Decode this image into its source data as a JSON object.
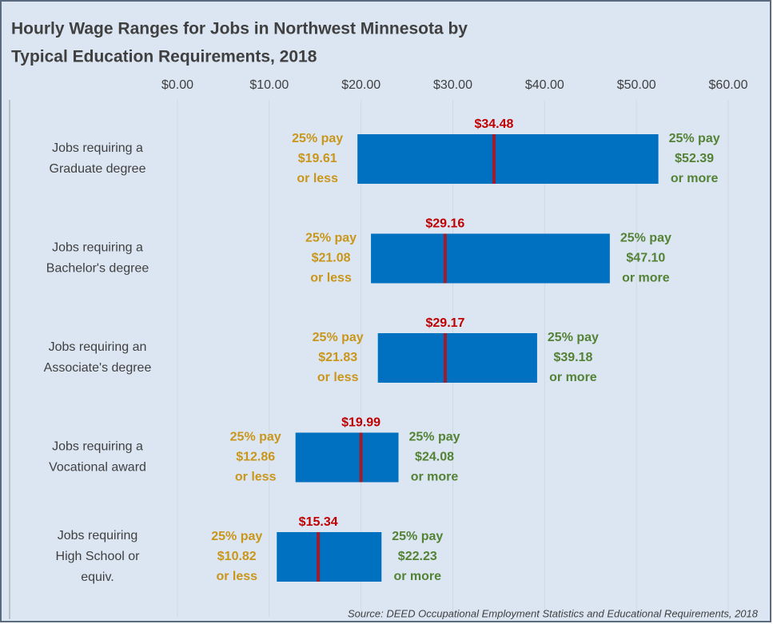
{
  "chart_data": {
    "type": "range",
    "title": [
      "Hourly Wage Ranges for Jobs in Northwest Minnesota by",
      "Typical Education Requirements, 2018"
    ],
    "categories": [
      [
        "Jobs requiring a",
        "Graduate degree"
      ],
      [
        "Jobs requiring a",
        "Bachelor's degree"
      ],
      [
        "Jobs requiring an",
        "Associate's degree"
      ],
      [
        "Jobs requiring a",
        "Vocational award"
      ],
      [
        "Jobs requiring",
        "High School or",
        "equiv."
      ]
    ],
    "series": [
      {
        "name": "25th percentile",
        "color": "#c9961a",
        "values": [
          19.61,
          21.08,
          21.83,
          12.86,
          10.82
        ],
        "value_labels": [
          "$19.61",
          "$21.08",
          "$21.83",
          "$12.86",
          "$10.82"
        ]
      },
      {
        "name": "Median",
        "color": "#c00000",
        "values": [
          34.48,
          29.16,
          29.17,
          19.99,
          15.34
        ],
        "value_labels": [
          "$34.48",
          "$29.16",
          "$29.17",
          "$19.99",
          "$15.34"
        ]
      },
      {
        "name": "75th percentile",
        "color": "#548235",
        "values": [
          52.39,
          47.1,
          39.18,
          24.08,
          22.23
        ],
        "value_labels": [
          "$52.39",
          "$47.10",
          "$39.18",
          "$24.08",
          "$22.23"
        ]
      }
    ],
    "low_prefix": "25% pay",
    "low_suffix": "or less",
    "high_prefix": "25% pay",
    "high_suffix": "or more",
    "bar_color": "#0070c0",
    "median_color": "#a01c2c",
    "xlim": [
      0,
      60
    ],
    "xticks": [
      {
        "value": 0,
        "label": "$0.00"
      },
      {
        "value": 10,
        "label": "$10.00"
      },
      {
        "value": 20,
        "label": "$20.00"
      },
      {
        "value": 30,
        "label": "$30.00"
      },
      {
        "value": 40,
        "label": "$40.00"
      },
      {
        "value": 50,
        "label": "$50.00"
      },
      {
        "value": 60,
        "label": "$60.00"
      }
    ],
    "grid": true,
    "source": "Source: DEED Occupational Employment Statistics and Educational Requirements, 2018"
  }
}
